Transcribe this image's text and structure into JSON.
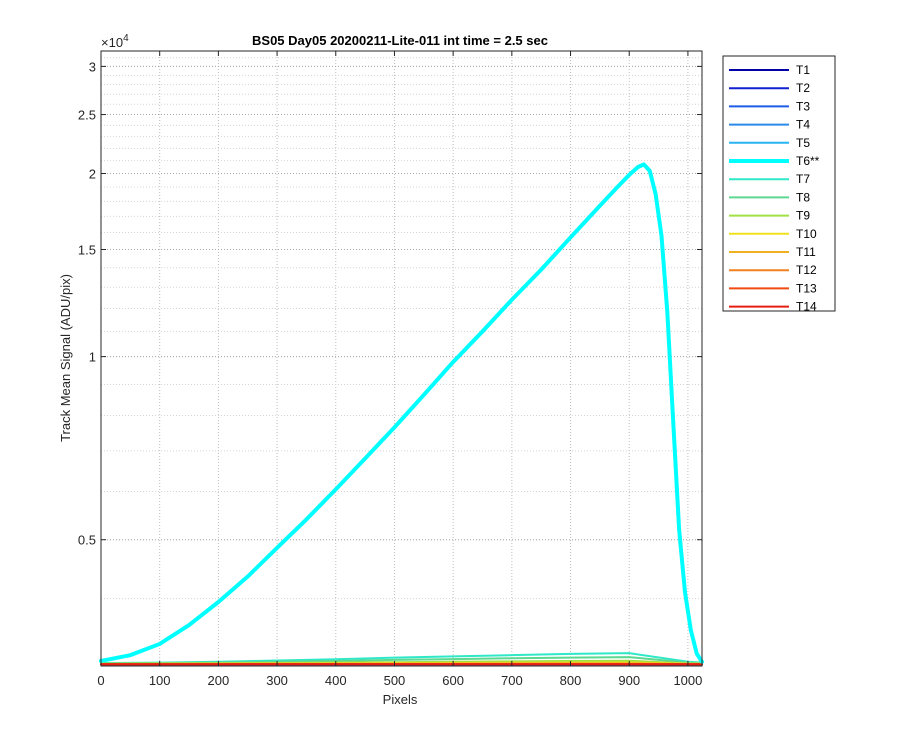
{
  "chart_data": {
    "type": "line",
    "title": "BS05 Day05 20200211-Lite-011 int time = 2.5 sec",
    "xlabel": "Pixels",
    "ylabel": "Track Mean Signal (ADU/pix)",
    "y_multiplier": "×10",
    "y_multiplier_exp": "4",
    "xlim": [
      0,
      1024
    ],
    "ylim": [
      3100,
      31800
    ],
    "yscale": "log",
    "grid": "both-dotted",
    "legend_position": "outside-right",
    "x_ticks": [
      0,
      100,
      200,
      300,
      400,
      500,
      600,
      700,
      800,
      900,
      1000
    ],
    "y_ticks": [
      {
        "value": 5000,
        "label": "0.5"
      },
      {
        "value": 10000,
        "label": "1"
      },
      {
        "value": 15000,
        "label": "1.5"
      },
      {
        "value": 20000,
        "label": "2"
      },
      {
        "value": 25000,
        "label": "2.5"
      },
      {
        "value": 30000,
        "label": "3"
      }
    ],
    "x_baseline": [
      0,
      100,
      200,
      300,
      400,
      500,
      600,
      700,
      800,
      900,
      1000,
      1024
    ],
    "series": [
      {
        "name": "T1",
        "color": "#0000a6",
        "width": 2,
        "values": [
          3120,
          3120,
          3120,
          3121,
          3121,
          3121,
          3121,
          3121,
          3121,
          3121,
          3120,
          3120
        ]
      },
      {
        "name": "T2",
        "color": "#1020d0",
        "width": 2,
        "values": [
          3121,
          3121,
          3122,
          3122,
          3122,
          3122,
          3122,
          3122,
          3122,
          3122,
          3121,
          3121
        ]
      },
      {
        "name": "T3",
        "color": "#1e5ce8",
        "width": 2,
        "values": [
          3122,
          3122,
          3123,
          3123,
          3124,
          3124,
          3124,
          3124,
          3124,
          3124,
          3122,
          3122
        ]
      },
      {
        "name": "T4",
        "color": "#2a8ae6",
        "width": 2,
        "values": [
          3124,
          3124,
          3125,
          3126,
          3127,
          3128,
          3128,
          3129,
          3129,
          3129,
          3124,
          3124
        ]
      },
      {
        "name": "T5",
        "color": "#28b4f0",
        "width": 2,
        "values": [
          3126,
          3127,
          3129,
          3131,
          3133,
          3135,
          3137,
          3139,
          3141,
          3142,
          3127,
          3126
        ]
      },
      {
        "name": "T6**",
        "color": "#00ffff",
        "width": 4,
        "highlight": true,
        "x": [
          0,
          50,
          100,
          150,
          200,
          250,
          300,
          350,
          400,
          450,
          500,
          550,
          600,
          650,
          700,
          750,
          800,
          850,
          880,
          900,
          915,
          925,
          935,
          945,
          955,
          965,
          975,
          985,
          995,
          1005,
          1015,
          1024
        ],
        "values": [
          3160,
          3230,
          3370,
          3620,
          3950,
          4350,
          4850,
          5400,
          6050,
          6800,
          7650,
          8650,
          9800,
          11000,
          12400,
          13900,
          15700,
          17700,
          19000,
          19900,
          20500,
          20700,
          20200,
          18500,
          15800,
          11800,
          7800,
          5200,
          4100,
          3550,
          3250,
          3150
        ]
      },
      {
        "name": "T7",
        "color": "#2ee8c8",
        "width": 2,
        "values": [
          3135,
          3140,
          3150,
          3165,
          3180,
          3200,
          3215,
          3230,
          3245,
          3255,
          3150,
          3140
        ]
      },
      {
        "name": "T8",
        "color": "#5cd890",
        "width": 2,
        "values": [
          3130,
          3134,
          3140,
          3150,
          3160,
          3172,
          3182,
          3192,
          3200,
          3206,
          3140,
          3132
        ]
      },
      {
        "name": "T9",
        "color": "#a0e040",
        "width": 2,
        "values": [
          3127,
          3129,
          3132,
          3136,
          3140,
          3145,
          3150,
          3155,
          3160,
          3162,
          3131,
          3128
        ]
      },
      {
        "name": "T10",
        "color": "#f0e020",
        "width": 2,
        "values": [
          3125,
          3126,
          3128,
          3130,
          3132,
          3134,
          3136,
          3138,
          3140,
          3141,
          3127,
          3125
        ]
      },
      {
        "name": "T11",
        "color": "#f0b020",
        "width": 2,
        "values": [
          3123,
          3124,
          3125,
          3126,
          3127,
          3128,
          3129,
          3130,
          3131,
          3131,
          3124,
          3123
        ]
      },
      {
        "name": "T12",
        "color": "#f08020",
        "width": 2,
        "values": [
          3122,
          3122,
          3123,
          3123,
          3124,
          3124,
          3124,
          3125,
          3125,
          3125,
          3122,
          3122
        ]
      },
      {
        "name": "T13",
        "color": "#f04a10",
        "width": 2,
        "values": [
          3121,
          3121,
          3121,
          3122,
          3122,
          3122,
          3122,
          3122,
          3122,
          3122,
          3121,
          3121
        ]
      },
      {
        "name": "T14",
        "color": "#e61e10",
        "width": 2,
        "values": [
          3120,
          3120,
          3120,
          3120,
          3120,
          3120,
          3120,
          3120,
          3120,
          3120,
          3120,
          3120
        ]
      }
    ]
  }
}
